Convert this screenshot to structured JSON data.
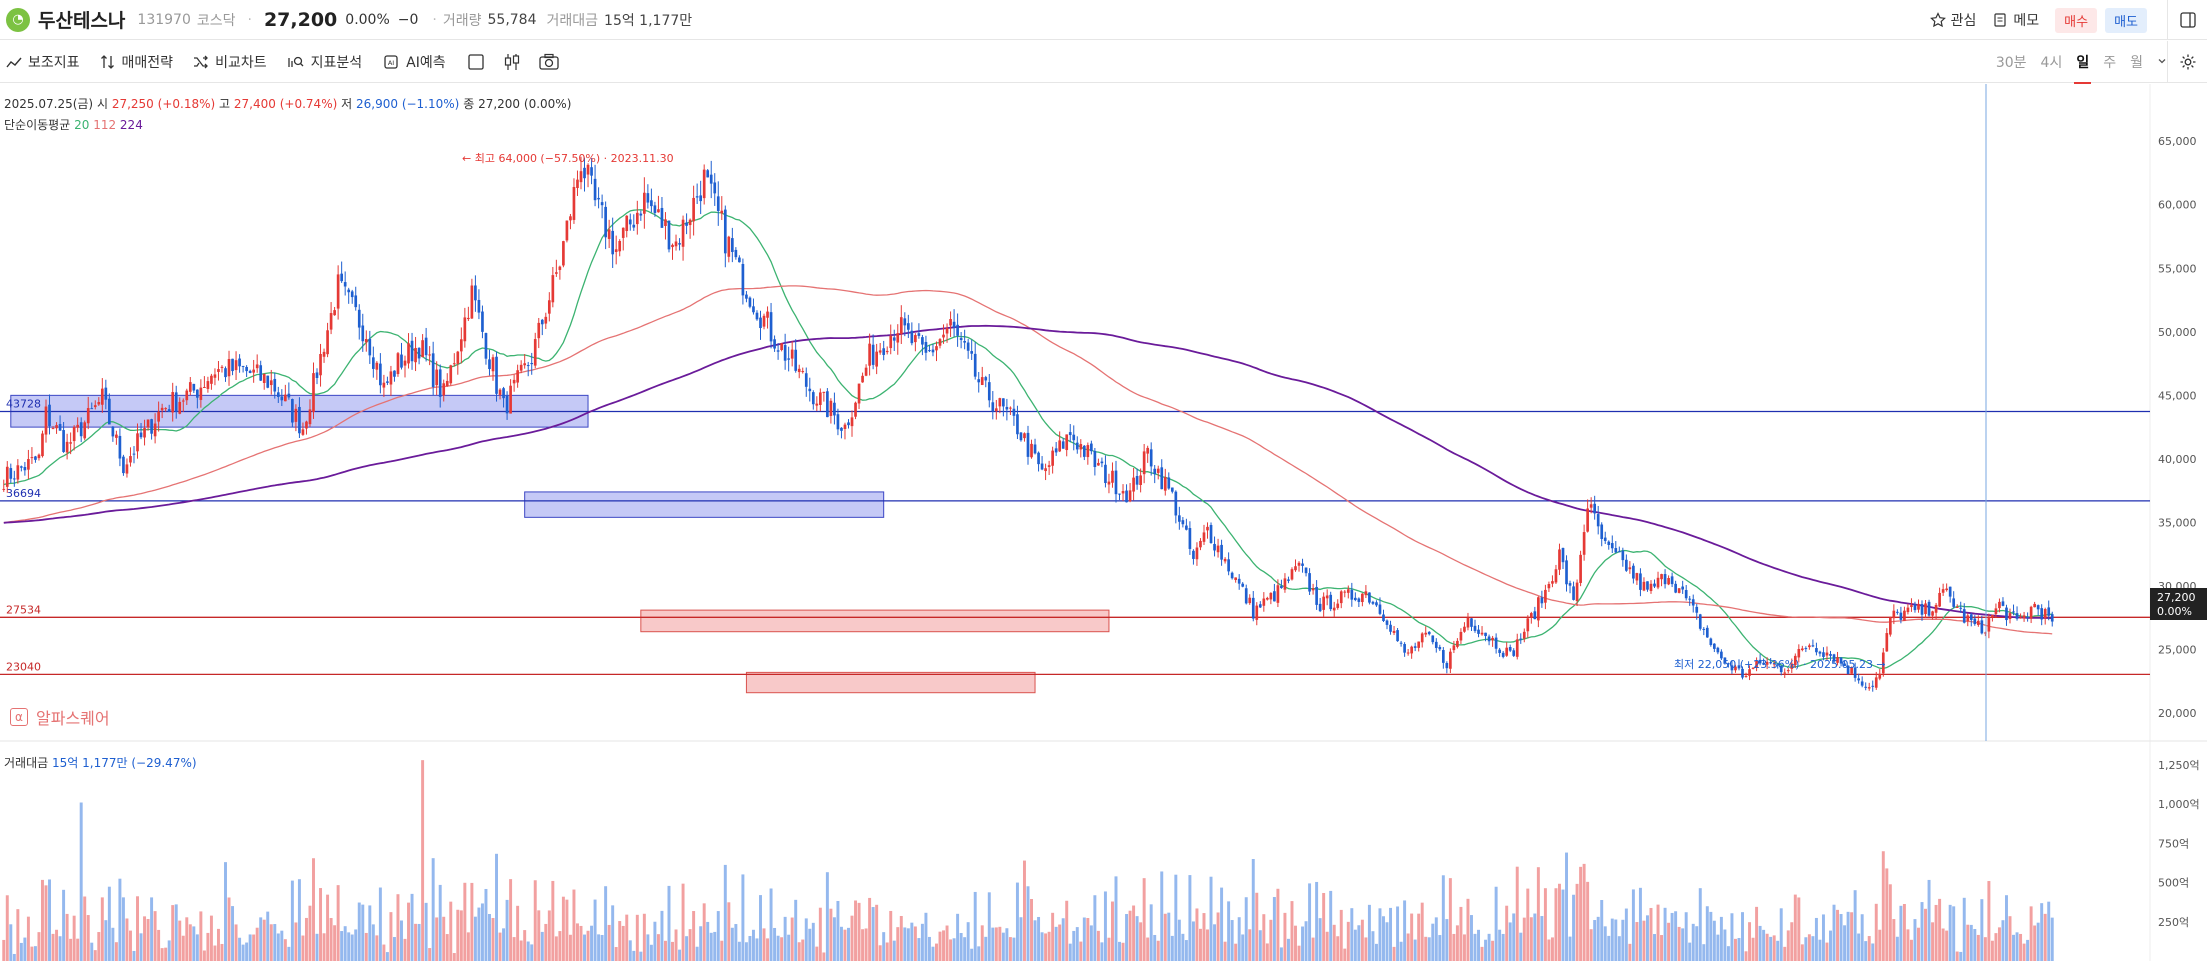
{
  "header": {
    "stock_name": "두산테스나",
    "stock_code": "131970",
    "market": "코스닥",
    "price": "27,200",
    "change_pct": "0.00%",
    "change_abs": "−0",
    "volume_label": "거래량",
    "volume_value": "55,784",
    "amount_label": "거래대금",
    "amount_value": "15억 1,177만",
    "watch_label": "관심",
    "memo_label": "메모",
    "buy_label": "매수",
    "sell_label": "매도"
  },
  "toolbar": {
    "indicator_label": "보조지표",
    "trade_strategy_label": "매매전략",
    "compare_label": "비교차트",
    "analysis_label": "지표분석",
    "ai_label": "AI예측",
    "periods": [
      "30분",
      "4시",
      "일",
      "주",
      "월"
    ],
    "active_period": "일"
  },
  "ohlc": {
    "date": "2025.07.25(금)",
    "open_label": "시",
    "open": "27,250",
    "open_pct": "(+0.18%)",
    "high_label": "고",
    "high": "27,400",
    "high_pct": "(+0.74%)",
    "low_label": "저",
    "low": "26,900",
    "low_pct": "(−1.10%)",
    "close_label": "종",
    "close": "27,200",
    "close_pct": "(0.00%)"
  },
  "ma_legend": {
    "label": "단순이동평균",
    "ma1": "20",
    "ma2": "112",
    "ma3": "224"
  },
  "watermark": "알파스퀘어",
  "volume_legend": {
    "label": "거래대금",
    "value": "15억 1,177만",
    "pct": "(−29.47%)"
  },
  "colors": {
    "up": "#e53935",
    "down": "#1e5fd0",
    "ma20": "#3cb371",
    "ma112": "#e57373",
    "ma224": "#6a1b9a",
    "blue_line": "#1f2fb0",
    "red_line": "#c62828",
    "crosshair": "#7aa7e0"
  },
  "chart_data": {
    "type": "candlestick",
    "y_ticks": [
      "65,000",
      "60,000",
      "55,000",
      "50,000",
      "45,000",
      "40,000",
      "35,000",
      "30,000",
      "25,000",
      "20,000"
    ],
    "ylim": [
      17800,
      69500
    ],
    "hlines": [
      {
        "label": "43728",
        "value": 43728,
        "color": "blue"
      },
      {
        "label": "36694",
        "value": 36694,
        "color": "blue"
      },
      {
        "label": "27534",
        "value": 27534,
        "color": "red"
      },
      {
        "label": "23040",
        "value": 23040,
        "color": "red"
      }
    ],
    "zones": [
      {
        "from_index": 2,
        "to_index": 166,
        "low": 42500,
        "high": 45000,
        "color": "blue"
      },
      {
        "from_index": 148,
        "to_index": 250,
        "low": 35400,
        "high": 37400,
        "color": "blue"
      },
      {
        "from_index": 181,
        "to_index": 314,
        "low": 26400,
        "high": 28100,
        "color": "red"
      },
      {
        "from_index": 211,
        "to_index": 293,
        "low": 21600,
        "high": 23200,
        "color": "red"
      }
    ],
    "high_annotation": "← 최고 64,000 (−57.50%) · 2023.11.30",
    "low_annotation": "최저 22,050 (+23.36%) · 2025.05.23 →",
    "last_price_tag": "27,200",
    "last_pct_tag": "0.00%",
    "keypoints": [
      [
        0,
        38500
      ],
      [
        10,
        40000
      ],
      [
        12,
        43500
      ],
      [
        18,
        41000
      ],
      [
        28,
        44700
      ],
      [
        34,
        39500
      ],
      [
        38,
        41200
      ],
      [
        45,
        44000
      ],
      [
        55,
        45500
      ],
      [
        60,
        47000
      ],
      [
        68,
        47000
      ],
      [
        76,
        46000
      ],
      [
        85,
        42500
      ],
      [
        95,
        53500
      ],
      [
        103,
        50000
      ],
      [
        108,
        45500
      ],
      [
        112,
        47500
      ],
      [
        118,
        49000
      ],
      [
        125,
        45000
      ],
      [
        133,
        53000
      ],
      [
        142,
        44000
      ],
      [
        150,
        48000
      ],
      [
        158,
        55500
      ],
      [
        164,
        63500
      ],
      [
        168,
        60000
      ],
      [
        174,
        56500
      ],
      [
        182,
        60500
      ],
      [
        191,
        57000
      ],
      [
        199,
        62000
      ],
      [
        209,
        54500
      ],
      [
        219,
        49500
      ],
      [
        229,
        45500
      ],
      [
        239,
        42500
      ],
      [
        246,
        48000
      ],
      [
        254,
        50500
      ],
      [
        262,
        48000
      ],
      [
        269,
        50500
      ],
      [
        278,
        45500
      ],
      [
        288,
        42500
      ],
      [
        295,
        38800
      ],
      [
        303,
        42000
      ],
      [
        312,
        39000
      ],
      [
        320,
        37200
      ],
      [
        325,
        40500
      ],
      [
        332,
        37000
      ],
      [
        338,
        32000
      ],
      [
        342,
        34500
      ],
      [
        348,
        31500
      ],
      [
        355,
        28000
      ],
      [
        362,
        29500
      ],
      [
        368,
        31500
      ],
      [
        374,
        28500
      ],
      [
        380,
        29000
      ],
      [
        387,
        29500
      ],
      [
        393,
        27500
      ],
      [
        398,
        24500
      ],
      [
        404,
        26000
      ],
      [
        410,
        24000
      ],
      [
        416,
        27500
      ],
      [
        422,
        26000
      ],
      [
        428,
        24500
      ],
      [
        434,
        27500
      ],
      [
        438,
        29500
      ],
      [
        442,
        32500
      ],
      [
        446,
        28500
      ],
      [
        450,
        36500
      ],
      [
        455,
        33000
      ],
      [
        461,
        31500
      ],
      [
        467,
        29500
      ],
      [
        473,
        31000
      ],
      [
        480,
        28000
      ],
      [
        487,
        24500
      ],
      [
        494,
        23000
      ],
      [
        500,
        24000
      ],
      [
        506,
        23500
      ],
      [
        513,
        25500
      ],
      [
        520,
        24500
      ],
      [
        526,
        23000
      ],
      [
        530,
        22100
      ],
      [
        533,
        23000
      ],
      [
        536,
        27500
      ],
      [
        541,
        28000
      ],
      [
        546,
        28000
      ],
      [
        552,
        29500
      ],
      [
        557,
        27500
      ],
      [
        562,
        26500
      ],
      [
        567,
        28500
      ],
      [
        572,
        27000
      ],
      [
        577,
        28500
      ],
      [
        582,
        27200
      ]
    ],
    "volume_y_ticks": [
      "1,250억",
      "1,000억",
      "750억",
      "500억",
      "250억"
    ],
    "volume_ylim": [
      0,
      1300
    ],
    "volume_spikes": [
      [
        22,
        1010
      ],
      [
        119,
        1280
      ],
      [
        63,
        630
      ],
      [
        290,
        640
      ],
      [
        448,
        600
      ],
      [
        535,
        590
      ],
      [
        215,
        420
      ],
      [
        348,
        380
      ],
      [
        568,
        260
      ]
    ]
  }
}
